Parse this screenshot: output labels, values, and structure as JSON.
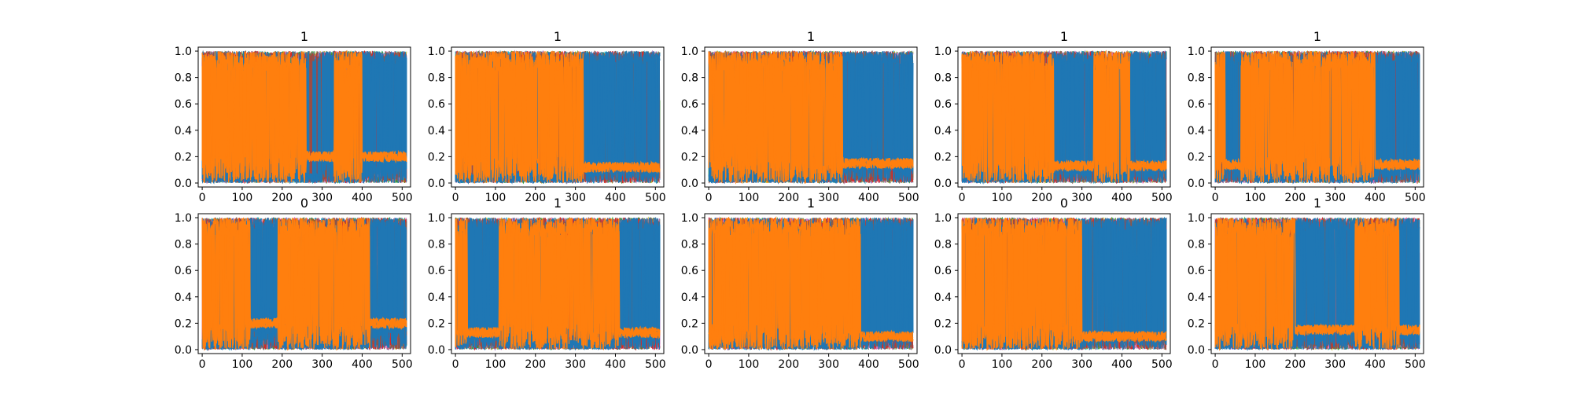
{
  "chart_data": [
    {
      "type": "line",
      "title": "1",
      "xlim": [
        -10,
        521
      ],
      "ylim": [
        -0.03,
        1.03
      ],
      "xticks": [
        0,
        100,
        200,
        300,
        400,
        500
      ],
      "yticks": [
        "0.0",
        "0.2",
        "0.4",
        "0.6",
        "0.8",
        "1.0"
      ],
      "grid": false,
      "regions": [
        {
          "x": [
            0,
            260
          ],
          "dominant": "orange"
        },
        {
          "x": [
            260,
            300
          ],
          "dominant": "mixed"
        },
        {
          "x": [
            300,
            330
          ],
          "dominant": "blue"
        },
        {
          "x": [
            330,
            400
          ],
          "dominant": "orange"
        },
        {
          "x": [
            400,
            512
          ],
          "dominant": "blue"
        }
      ],
      "baseline_level": 0.2
    },
    {
      "type": "line",
      "title": "1",
      "xlim": [
        -10,
        521
      ],
      "ylim": [
        -0.03,
        1.03
      ],
      "xticks": [
        0,
        100,
        200,
        300,
        400,
        500
      ],
      "yticks": [
        "0.0",
        "0.2",
        "0.4",
        "0.6",
        "0.8",
        "1.0"
      ],
      "grid": false,
      "regions": [
        {
          "x": [
            0,
            320
          ],
          "dominant": "orange"
        },
        {
          "x": [
            320,
            512
          ],
          "dominant": "blue"
        }
      ],
      "baseline_level": 0.12
    },
    {
      "type": "line",
      "title": "1",
      "xlim": [
        -10,
        521
      ],
      "ylim": [
        -0.03,
        1.03
      ],
      "xticks": [
        0,
        100,
        200,
        300,
        400,
        500
      ],
      "yticks": [
        "0.0",
        "0.2",
        "0.4",
        "0.6",
        "0.8",
        "1.0"
      ],
      "grid": false,
      "regions": [
        {
          "x": [
            0,
            335
          ],
          "dominant": "orange"
        },
        {
          "x": [
            335,
            512
          ],
          "dominant": "blue"
        }
      ],
      "baseline_level": 0.15
    },
    {
      "type": "line",
      "title": "1",
      "xlim": [
        -10,
        521
      ],
      "ylim": [
        -0.03,
        1.03
      ],
      "xticks": [
        0,
        100,
        200,
        300,
        400,
        500
      ],
      "yticks": [
        "0.0",
        "0.2",
        "0.4",
        "0.6",
        "0.8",
        "1.0"
      ],
      "grid": false,
      "regions": [
        {
          "x": [
            0,
            230
          ],
          "dominant": "orange"
        },
        {
          "x": [
            230,
            330
          ],
          "dominant": "blue"
        },
        {
          "x": [
            330,
            420
          ],
          "dominant": "orange"
        },
        {
          "x": [
            420,
            512
          ],
          "dominant": "blue"
        }
      ],
      "baseline_level": 0.13
    },
    {
      "type": "line",
      "title": "1",
      "xlim": [
        -10,
        521
      ],
      "ylim": [
        -0.03,
        1.03
      ],
      "xticks": [
        0,
        100,
        200,
        300,
        400,
        500
      ],
      "yticks": [
        "0.0",
        "0.2",
        "0.4",
        "0.6",
        "0.8",
        "1.0"
      ],
      "grid": false,
      "regions": [
        {
          "x": [
            0,
            25
          ],
          "dominant": "orange"
        },
        {
          "x": [
            25,
            65
          ],
          "dominant": "blue"
        },
        {
          "x": [
            65,
            400
          ],
          "dominant": "orange"
        },
        {
          "x": [
            400,
            512
          ],
          "dominant": "blue"
        }
      ],
      "baseline_level": 0.14
    },
    {
      "type": "line",
      "title": "0",
      "xlim": [
        -10,
        521
      ],
      "ylim": [
        -0.03,
        1.03
      ],
      "xticks": [
        0,
        100,
        200,
        300,
        400,
        500
      ],
      "yticks": [
        "0.0",
        "0.2",
        "0.4",
        "0.6",
        "0.8",
        "1.0"
      ],
      "grid": false,
      "regions": [
        {
          "x": [
            0,
            120
          ],
          "dominant": "orange"
        },
        {
          "x": [
            120,
            190
          ],
          "dominant": "blue"
        },
        {
          "x": [
            190,
            420
          ],
          "dominant": "orange"
        },
        {
          "x": [
            420,
            512
          ],
          "dominant": "blue"
        }
      ],
      "baseline_level": 0.2
    },
    {
      "type": "line",
      "title": "1",
      "xlim": [
        -10,
        521
      ],
      "ylim": [
        -0.03,
        1.03
      ],
      "xticks": [
        0,
        100,
        200,
        300,
        400,
        500
      ],
      "yticks": [
        "0.0",
        "0.2",
        "0.4",
        "0.6",
        "0.8",
        "1.0"
      ],
      "grid": false,
      "regions": [
        {
          "x": [
            0,
            30
          ],
          "dominant": "orange"
        },
        {
          "x": [
            30,
            110
          ],
          "dominant": "blue"
        },
        {
          "x": [
            110,
            410
          ],
          "dominant": "orange"
        },
        {
          "x": [
            410,
            512
          ],
          "dominant": "blue"
        }
      ],
      "baseline_level": 0.13
    },
    {
      "type": "line",
      "title": "1",
      "xlim": [
        -10,
        521
      ],
      "ylim": [
        -0.03,
        1.03
      ],
      "xticks": [
        0,
        100,
        200,
        300,
        400,
        500
      ],
      "yticks": [
        "0.0",
        "0.2",
        "0.4",
        "0.6",
        "0.8",
        "1.0"
      ],
      "grid": false,
      "regions": [
        {
          "x": [
            0,
            380
          ],
          "dominant": "orange"
        },
        {
          "x": [
            380,
            512
          ],
          "dominant": "blue"
        }
      ],
      "baseline_level": 0.1
    },
    {
      "type": "line",
      "title": "0",
      "xlim": [
        -10,
        521
      ],
      "ylim": [
        -0.03,
        1.03
      ],
      "xticks": [
        0,
        100,
        200,
        300,
        400,
        500
      ],
      "yticks": [
        "0.0",
        "0.2",
        "0.4",
        "0.6",
        "0.8",
        "1.0"
      ],
      "grid": false,
      "regions": [
        {
          "x": [
            0,
            300
          ],
          "dominant": "orange"
        },
        {
          "x": [
            300,
            512
          ],
          "dominant": "blue"
        }
      ],
      "baseline_level": 0.1
    },
    {
      "type": "line",
      "title": "1",
      "xlim": [
        -10,
        521
      ],
      "ylim": [
        -0.03,
        1.03
      ],
      "xticks": [
        0,
        100,
        200,
        300,
        400,
        500
      ],
      "yticks": [
        "0.0",
        "0.2",
        "0.4",
        "0.6",
        "0.8",
        "1.0"
      ],
      "grid": false,
      "regions": [
        {
          "x": [
            0,
            200
          ],
          "dominant": "orange"
        },
        {
          "x": [
            200,
            350
          ],
          "dominant": "blue"
        },
        {
          "x": [
            350,
            460
          ],
          "dominant": "orange"
        },
        {
          "x": [
            460,
            512
          ],
          "dominant": "blue"
        }
      ],
      "baseline_level": 0.15
    }
  ],
  "colors": {
    "blue": "#1f77b4",
    "orange": "#ff7f0e",
    "cyan": "#17becf",
    "olive": "#bcbd22",
    "purple": "#9467bd",
    "green": "#2ca02c",
    "pink": "#e377c2",
    "grey": "#7f7f7f",
    "red": "#d62728",
    "brown": "#8c564b",
    "axis": "#000000",
    "background": "#ffffff"
  }
}
